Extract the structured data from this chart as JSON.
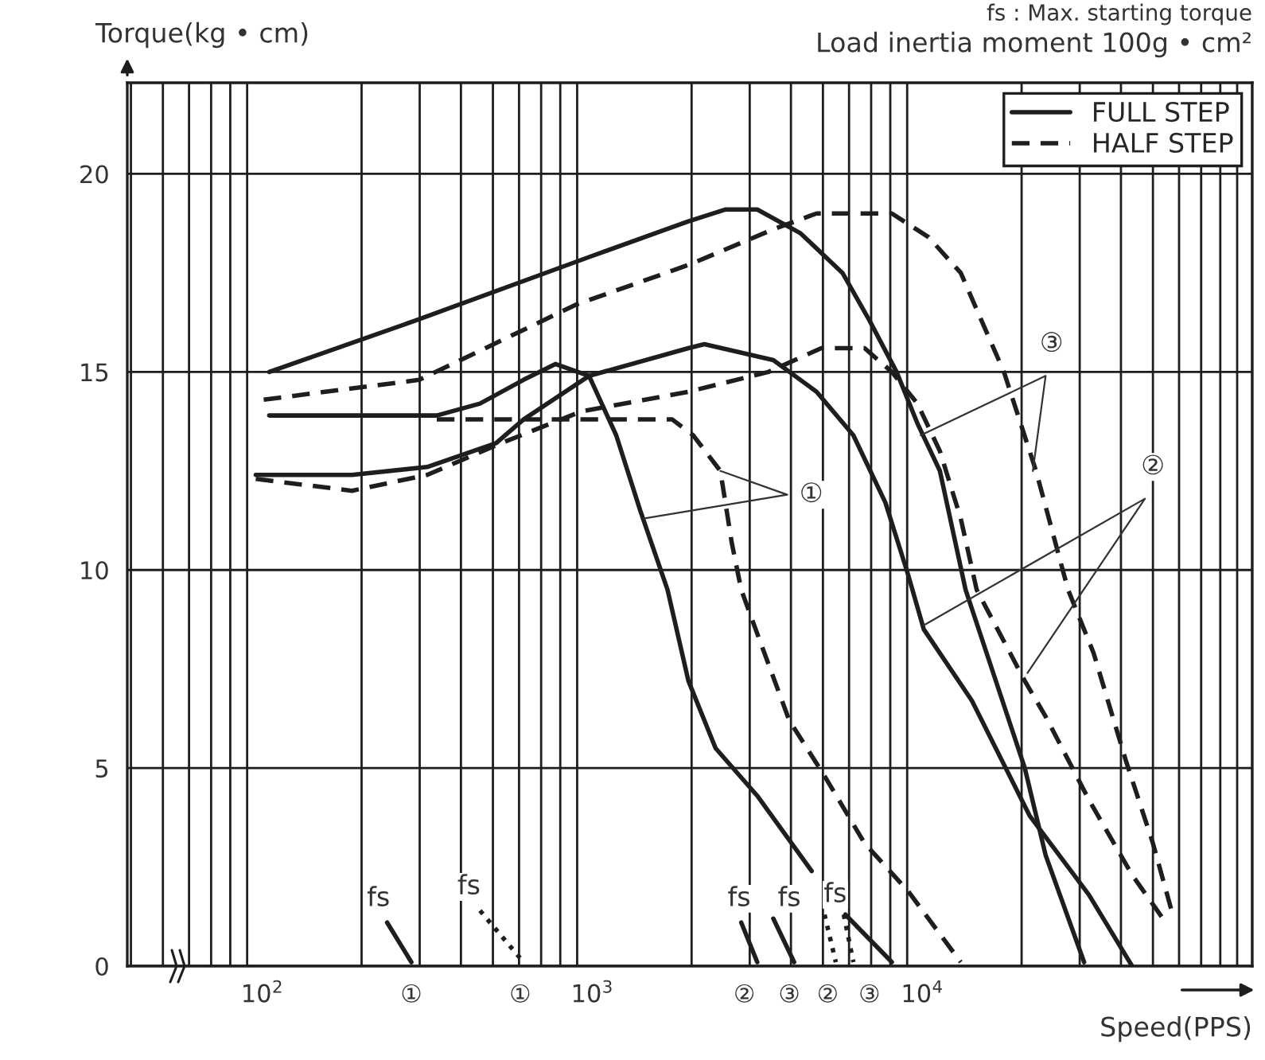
{
  "chart_data": {
    "type": "line",
    "title": "fs : Max. starting torque",
    "subtitle": "Load inertia moment 100g • cm²",
    "ylabel": "Torque(kg • cm)",
    "xlabel": "Speed(PPS)",
    "log": "x",
    "xlim": [
      39,
      100000
    ],
    "ylim": [
      0,
      22.3
    ],
    "xticks": [
      {
        "value": 100,
        "label": "10$^{2}$"
      },
      {
        "value": 283,
        "label": "①"
      },
      {
        "value": 605,
        "label": "①"
      },
      {
        "value": 1000,
        "label": "10$^{3}$"
      },
      {
        "value": 2891,
        "label": "②"
      },
      {
        "value": 3954,
        "label": "③"
      },
      {
        "value": 5171,
        "label": "②"
      },
      {
        "value": 6917,
        "label": "③"
      },
      {
        "value": 10000,
        "label": "10$^{4}$"
      }
    ],
    "yticks": [
      0,
      5,
      10,
      15,
      20
    ],
    "grid": true,
    "legend": "top right",
    "series": [
      {
        "name": "FULL STEP",
        "color": "#1e1e1e",
        "line_style": "solid",
        "x": [
          105,
          338,
          457,
          619,
          773,
          978,
          1182,
          1398,
          1691,
          1956,
          2365,
          3162,
          4624
        ],
        "values": [
          13.9,
          13.9,
          14.2,
          14.8,
          15.2,
          14.9,
          13.4,
          11.5,
          9.5,
          7.2,
          5.5,
          4.3,
          2.4
        ]
      },
      {
        "name": "HALF STEP",
        "color": "#1e1e1e",
        "line_style": "dashed",
        "x": [
          338,
          1034,
          1748,
          2022,
          2445,
          2645,
          2828,
          3128,
          3954,
          5057,
          6688,
          9045,
          13080
        ],
        "values": [
          13.8,
          13.8,
          13.8,
          13.4,
          12.5,
          10.7,
          9.5,
          8.5,
          6.2,
          4.8,
          3.1,
          1.9,
          0.1
        ]
      },
      {
        "color": "#1e1e1e",
        "line_style": "solid",
        "x": [
          95.6,
          187,
          316,
          511,
          619,
          978,
          1956,
          2187,
          3537,
          4782,
          6184,
          7733,
          9045,
          10110,
          14140,
          21140,
          31980,
          43240
        ],
        "values": [
          12.4,
          12.4,
          12.6,
          13.2,
          13.8,
          14.9,
          15.6,
          15.7,
          15.3,
          14.5,
          13.4,
          11.7,
          9.9,
          8.5,
          6.7,
          3.8,
          1.8,
          0
        ]
      },
      {
        "color": "#1e1e1e",
        "line_style": "dashed",
        "x": [
          95.6,
          187,
          316,
          529,
          925,
          1956,
          3420,
          4945,
          6688,
          8087,
          9670,
          11310,
          13080,
          14620,
          20450,
          23650,
          31980,
          43240,
          54690
        ],
        "values": [
          12.3,
          12.0,
          12.4,
          13.2,
          14.0,
          14.5,
          15.0,
          15.6,
          15.6,
          15.0,
          14.2,
          13.0,
          11.3,
          9.5,
          7.2,
          6.3,
          4.2,
          2.3,
          1.1
        ]
      },
      {
        "color": "#1e1e1e",
        "line_style": "solid",
        "x": [
          105,
          292,
          978,
          1956,
          2528,
          2828,
          3162,
          4277,
          5730,
          6917,
          8360,
          9670,
          11310,
          13530,
          20450,
          23650,
          30930
        ],
        "values": [
          15.0,
          16.3,
          17.9,
          18.8,
          19.1,
          19.1,
          19.1,
          18.5,
          17.5,
          16.3,
          15.0,
          13.7,
          12.5,
          9.5,
          5.0,
          2.8,
          0.1
        ]
      },
      {
        "color": "#1e1e1e",
        "line_style": "dashed",
        "x": [
          101,
          299,
          894,
          1956,
          3537,
          4782,
          8087,
          10460,
          13080,
          17680,
          22120,
          27660,
          33060,
          41350,
          50000,
          57830
        ],
        "values": [
          14.3,
          14.8,
          16.7,
          17.7,
          18.6,
          19.0,
          19.0,
          18.4,
          17.5,
          15.0,
          12.5,
          9.5,
          7.9,
          5.2,
          3.1,
          1.2
        ]
      },
      {
        "color": "#1e1e1e",
        "line_style": "solid",
        "x": [
          239,
          283
        ],
        "values": [
          1.1,
          0.1
        ]
      },
      {
        "color": "#1e1e1e",
        "line_style": "dotted",
        "x": [
          457,
          605
        ],
        "values": [
          1.4,
          0.2
        ]
      },
      {
        "color": "#1e1e1e",
        "line_style": "solid",
        "x": [
          2828,
          3162
        ],
        "values": [
          1.1,
          0.1
        ]
      },
      {
        "color": "#1e1e1e",
        "line_style": "solid",
        "x": [
          3537,
          4090
        ],
        "values": [
          1.2,
          0.1
        ]
      },
      {
        "color": "#1e1e1e",
        "line_style": "dotted",
        "x": [
          5057,
          5470
        ],
        "values": [
          1.3,
          0.1
        ]
      },
      {
        "color": "#1e1e1e",
        "line_style": "dotted",
        "x": [
          5783,
          6184
        ],
        "values": [
          1.3,
          0.1
        ]
      },
      {
        "color": "#1e1e1e",
        "line_style": "solid",
        "x": [
          5848,
          8087
        ],
        "values": [
          1.3,
          0.1
        ]
      },
      {
        "color": "#333333",
        "x": [
          1430,
          3897,
          2445
        ],
        "values": [
          11.3,
          11.9,
          12.5
        ]
      },
      {
        "color": "#333333",
        "x": [
          9890,
          23650,
          21630
        ],
        "values": [
          13.4,
          14.9,
          12.5
        ]
      },
      {
        "color": "#333333",
        "x": [
          10080,
          47300,
          20840
        ],
        "values": [
          8.6,
          11.8,
          7.4
        ]
      }
    ],
    "annotations": [
      {
        "text": "①",
        "x": 4610,
        "y": 11.9
      },
      {
        "text": "③",
        "x": 24650,
        "y": 15.7
      },
      {
        "text": "②",
        "x": 50000,
        "y": 12.6
      },
      {
        "text": "fs",
        "x": 225,
        "y": 1.7
      },
      {
        "text": "fs",
        "x": 423,
        "y": 2.0
      },
      {
        "text": "fs",
        "x": 2787,
        "y": 1.7
      },
      {
        "text": "fs",
        "x": 3954,
        "y": 1.7
      },
      {
        "text": "fs",
        "x": 5450,
        "y": 1.8
      }
    ]
  }
}
